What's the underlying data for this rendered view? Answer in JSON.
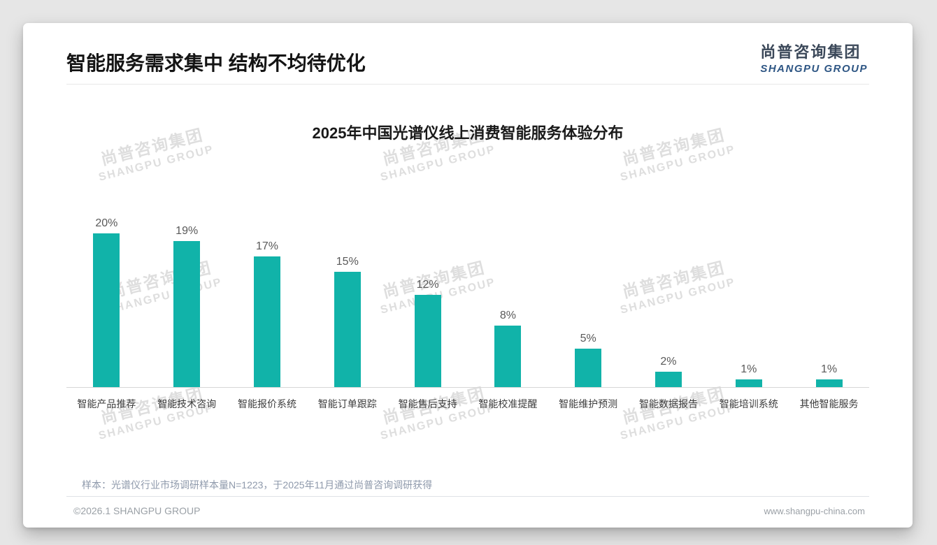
{
  "header": {
    "title": "智能服务需求集中 结构不均待优化"
  },
  "logo": {
    "cn": "尚普咨询集团",
    "en": "SHANGPU GROUP",
    "en_color": "#2e5684"
  },
  "watermark": {
    "cn": "尚普咨询集团",
    "en": "SHANGPU GROUP"
  },
  "chart_data": {
    "type": "bar",
    "title": "2025年中国光谱仪线上消费智能服务体验分布",
    "categories": [
      "智能产品推荐",
      "智能技术咨询",
      "智能报价系统",
      "智能订单跟踪",
      "智能售后支持",
      "智能校准提醒",
      "智能维护预测",
      "智能数据报告",
      "智能培训系统",
      "其他智能服务"
    ],
    "values": [
      20,
      19,
      17,
      15,
      12,
      8,
      5,
      2,
      1,
      1
    ],
    "value_labels": [
      "20%",
      "19%",
      "17%",
      "15%",
      "12%",
      "8%",
      "5%",
      "2%",
      "1%",
      "1%"
    ],
    "unit": "%",
    "bar_color": "#11b3a9",
    "xlabel": "",
    "ylabel": "",
    "ylim": [
      0,
      22
    ],
    "grid": false,
    "legend": "none"
  },
  "footnote": "样本：光谱仪行业市场调研样本量N=1223，于2025年11月通过尚普咨询调研获得",
  "footer": {
    "copyright": "©2026.1 SHANGPU GROUP",
    "website": "www.shangpu-china.com"
  }
}
